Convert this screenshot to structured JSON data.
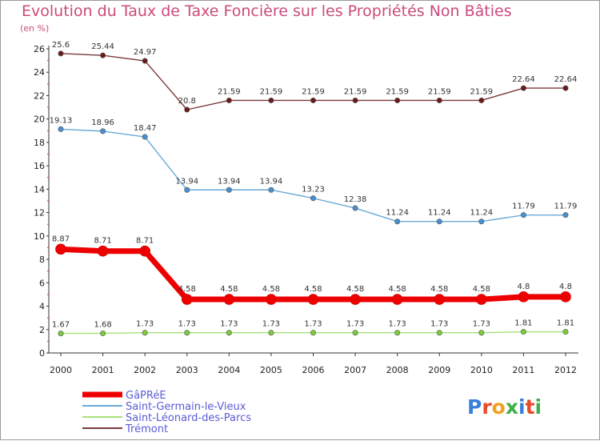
{
  "chart_data": {
    "type": "line",
    "title": "Evolution du Taux de Taxe Foncière sur les Propriétés Non Bâties",
    "ylabel": "(en %)",
    "xlabel": "",
    "ylim": [
      0,
      26
    ],
    "yticks": [
      0,
      2,
      4,
      6,
      8,
      10,
      12,
      14,
      16,
      18,
      20,
      22,
      24,
      26
    ],
    "categories": [
      "2000",
      "2001",
      "2002",
      "2003",
      "2004",
      "2005",
      "2006",
      "2007",
      "2008",
      "2009",
      "2010",
      "2011",
      "2012"
    ],
    "grid": false,
    "legend_position": "bottom-left",
    "series": [
      {
        "name": "GâPRéE",
        "color": "#ee0000",
        "marker_color": "#ee0000",
        "values": [
          8.87,
          8.71,
          8.71,
          4.58,
          4.58,
          4.58,
          4.58,
          4.58,
          4.58,
          4.58,
          4.58,
          4.8,
          4.8
        ],
        "labels": [
          "8.87",
          "8.71",
          "8.71",
          "4.58",
          "4.58",
          "4.58",
          "4.58",
          "4.58",
          "4.58",
          "4.58",
          "4.58",
          "4.8",
          "4.8"
        ]
      },
      {
        "name": "Saint-Germain-le-Vieux",
        "color": "#6aaad8",
        "marker_color": "#4a8fd0",
        "values": [
          19.13,
          18.96,
          18.47,
          13.94,
          13.94,
          13.94,
          13.23,
          12.38,
          11.24,
          11.24,
          11.24,
          11.79,
          11.79
        ],
        "labels": [
          "19.13",
          "18.96",
          "18.47",
          "13.94",
          "13.94",
          "13.94",
          "13.23",
          "12.38",
          "11.24",
          "11.24",
          "11.24",
          "11.79",
          "11.79"
        ]
      },
      {
        "name": "Saint-Léonard-des-Parcs",
        "color": "#a8e07a",
        "marker_color": "#7ccc3c",
        "values": [
          1.67,
          1.68,
          1.73,
          1.73,
          1.73,
          1.73,
          1.73,
          1.73,
          1.73,
          1.73,
          1.73,
          1.81,
          1.81
        ],
        "labels": [
          "1.67",
          "1.68",
          "1.73",
          "1.73",
          "1.73",
          "1.73",
          "1.73",
          "1.73",
          "1.73",
          "1.73",
          "1.73",
          "1.81",
          "1.81"
        ]
      },
      {
        "name": "Trémont",
        "color": "#7a3a3a",
        "marker_color": "#6a1a1a",
        "values": [
          25.6,
          25.44,
          24.97,
          20.8,
          21.59,
          21.59,
          21.59,
          21.59,
          21.59,
          21.59,
          21.59,
          22.64,
          22.64
        ],
        "labels": [
          "25.6",
          "25.44",
          "24.97",
          "20.8",
          "21.59",
          "21.59",
          "21.59",
          "21.59",
          "21.59",
          "21.59",
          "21.59",
          "22.64",
          "22.64"
        ]
      }
    ]
  },
  "watermark": {
    "text": "Proxiti"
  }
}
